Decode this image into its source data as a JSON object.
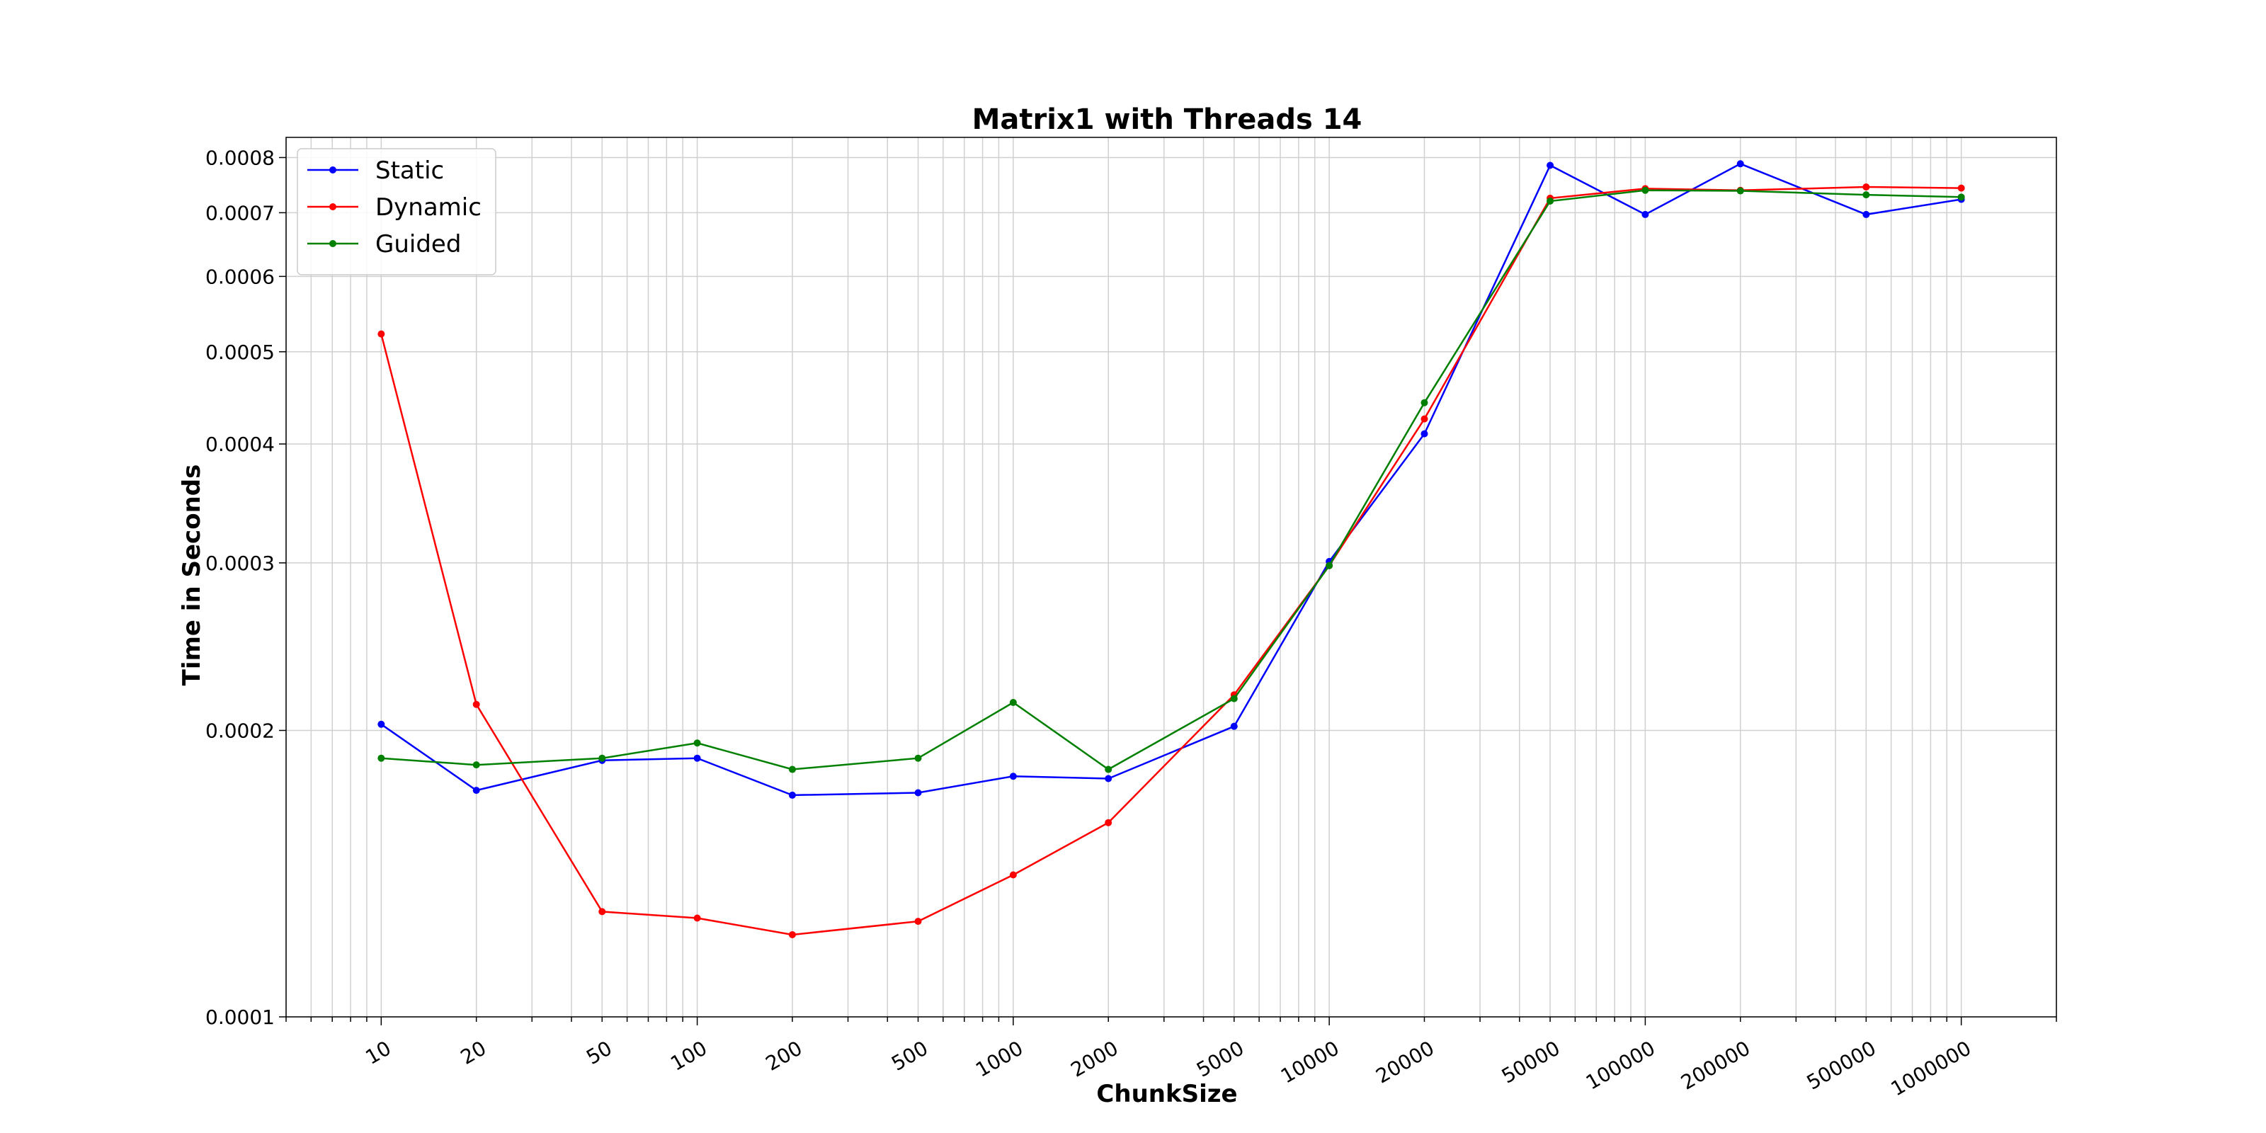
{
  "chart_data": {
    "type": "line",
    "title": "Matrix1 with Threads 14",
    "xlabel": "ChunkSize",
    "ylabel": "Time in Seconds",
    "x": [
      10,
      20,
      50,
      100,
      200,
      500,
      1000,
      2000,
      5000,
      10000,
      20000,
      50000,
      100000,
      200000,
      500000,
      1000000
    ],
    "x_tick_labels": [
      "10",
      "20",
      "50",
      "100",
      "200",
      "500",
      "1000",
      "2000",
      "5000",
      "10000",
      "20000",
      "50000",
      "100000",
      "200000",
      "500000",
      "1000000"
    ],
    "x_scale": "log",
    "y_scale": "log",
    "xlim": [
      5,
      2000000
    ],
    "ylim": [
      0.0001,
      0.00084
    ],
    "y_ticks": [
      0.0001,
      0.0002,
      0.0003,
      0.0004,
      0.0005,
      0.0006,
      0.0007,
      0.0008
    ],
    "y_tick_labels": [
      "0.0001",
      "0.0002",
      "0.0003",
      "0.0004",
      "0.0005",
      "0.0006",
      "0.0007",
      "0.0008"
    ],
    "grid": true,
    "legend_position": "top-left",
    "series": [
      {
        "name": "Static",
        "color": "#0000ff",
        "values": [
          0.000203,
          0.000173,
          0.000186,
          0.000187,
          0.000171,
          0.000172,
          0.000179,
          0.000178,
          0.000202,
          0.000301,
          0.00041,
          0.000785,
          0.000697,
          0.000788,
          0.000697,
          0.000723
        ]
      },
      {
        "name": "Dynamic",
        "color": "#ff0000",
        "values": [
          0.000522,
          0.000213,
          0.000129,
          0.000127,
          0.000122,
          0.000126,
          0.000141,
          0.00016,
          0.000218,
          0.000298,
          0.000425,
          0.000725,
          0.000742,
          0.000739,
          0.000745,
          0.000743
        ]
      },
      {
        "name": "Guided",
        "color": "#008000",
        "values": [
          0.000187,
          0.000184,
          0.000187,
          0.000194,
          0.000182,
          0.000187,
          0.000214,
          0.000182,
          0.000216,
          0.000298,
          0.000442,
          0.00072,
          0.000739,
          0.000738,
          0.000731,
          0.000727
        ]
      }
    ]
  }
}
